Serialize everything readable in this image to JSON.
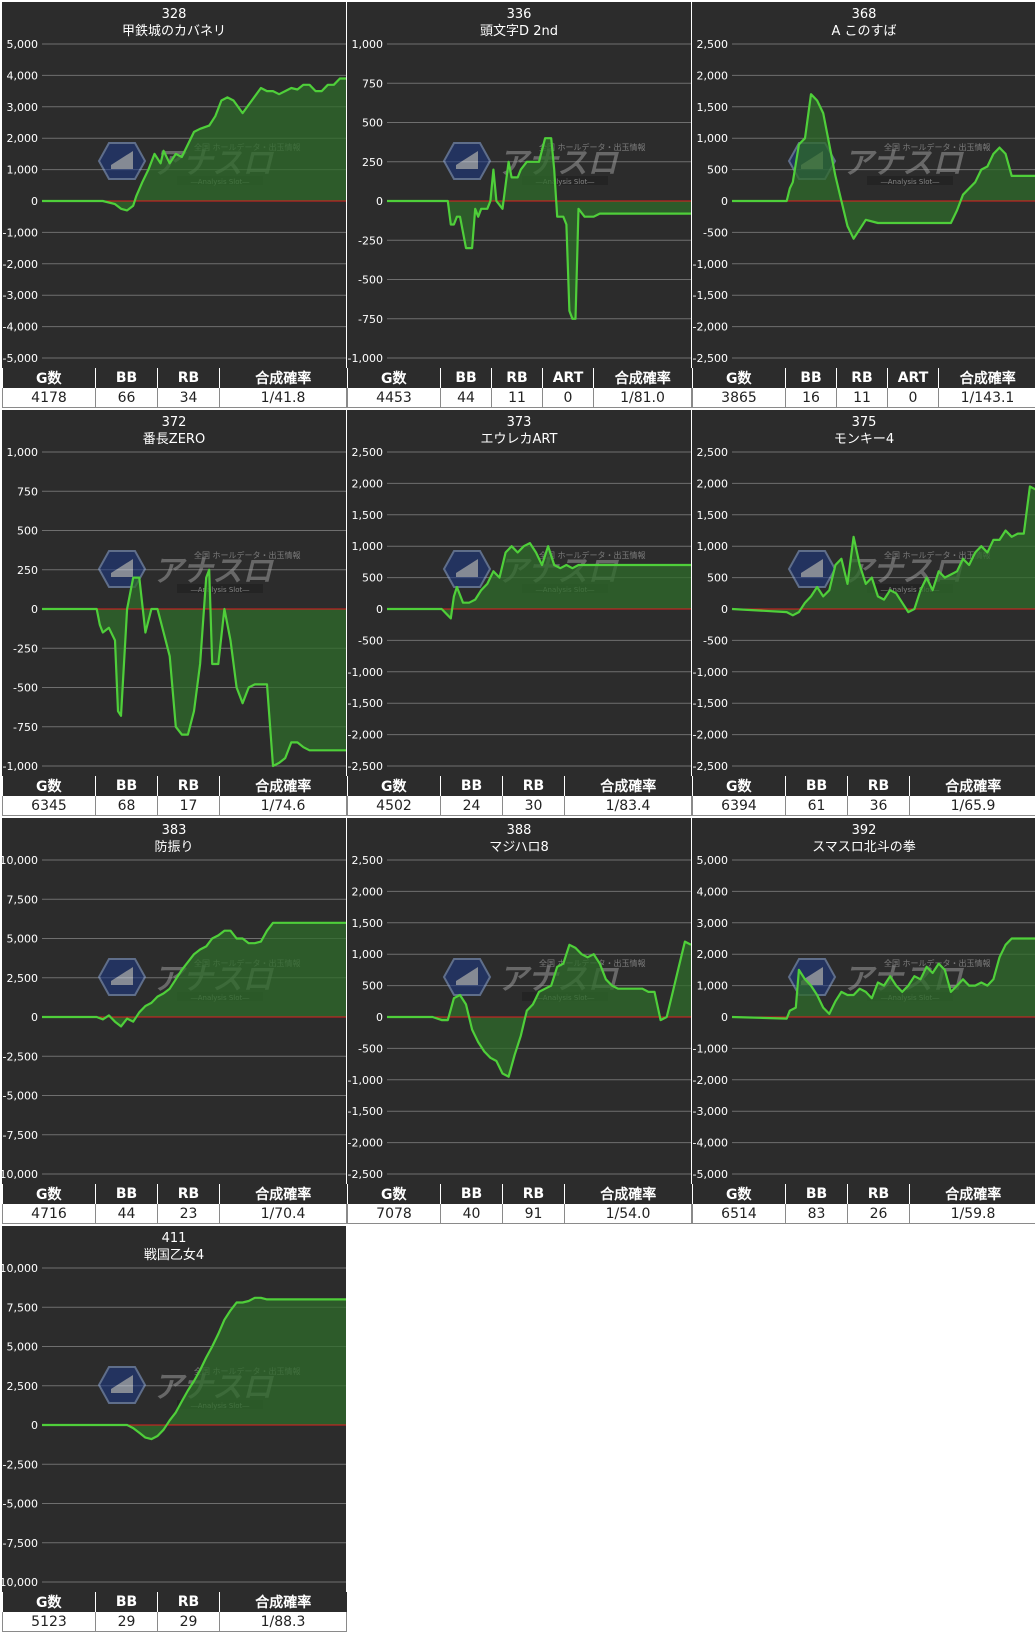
{
  "colors": {
    "background": "#2c2c2c",
    "gridline": "#6f6f6f",
    "zero_line": "#e02020",
    "series_line": "#4fcf3a",
    "series_fill": "#2e6b2a",
    "text": "#ffffff"
  },
  "watermark": {
    "title": "アナスロ",
    "subtitle": "―Analysis Slot―",
    "tagline": "全国 ホールデータ・出玉情報"
  },
  "machines": [
    {
      "number": "328",
      "name": "甲鉄城のカバネリ",
      "stats": {
        "headers": [
          "G数",
          "BB",
          "RB",
          "合成確率"
        ],
        "values": [
          "4178",
          "66",
          "34",
          "1/41.8"
        ]
      },
      "chart_data": {
        "type": "area",
        "ylim": [
          -5000,
          5000
        ],
        "yticks": [
          "5,000",
          "4,000",
          "3,000",
          "2,000",
          "1,000",
          "0",
          "-1,000",
          "-2,000",
          "-3,000",
          "-4,000",
          "-5,000"
        ],
        "x": [
          0,
          20,
          24,
          26,
          28,
          30,
          31,
          33,
          35,
          37,
          39,
          40,
          42,
          44,
          46,
          48,
          50,
          52,
          55,
          57,
          59,
          61,
          63,
          66,
          69,
          72,
          74,
          76,
          78,
          80,
          82,
          84,
          86,
          88,
          90,
          92,
          94,
          96,
          98,
          100
        ],
        "y": [
          0,
          0,
          -100,
          -250,
          -300,
          -150,
          150,
          600,
          1000,
          1500,
          1200,
          1600,
          1200,
          1500,
          1400,
          1800,
          2200,
          2300,
          2400,
          2700,
          3200,
          3300,
          3200,
          2800,
          3200,
          3600,
          3500,
          3500,
          3400,
          3500,
          3600,
          3550,
          3700,
          3700,
          3500,
          3500,
          3700,
          3700,
          3900,
          3900
        ]
      }
    },
    {
      "number": "336",
      "name": "頭文字D 2nd",
      "stats": {
        "headers": [
          "G数",
          "BB",
          "RB",
          "ART",
          "合成確率"
        ],
        "values": [
          "4453",
          "44",
          "11",
          "0",
          "1/81.0"
        ]
      },
      "chart_data": {
        "type": "area",
        "ylim": [
          -1000,
          1000
        ],
        "yticks": [
          "1,000",
          "750",
          "500",
          "250",
          "0",
          "-250",
          "-500",
          "-750",
          "-1,000"
        ],
        "x": [
          0,
          20,
          21,
          22,
          23,
          24,
          26,
          28,
          29,
          30,
          31,
          33,
          34,
          35,
          36,
          38,
          40,
          41,
          43,
          44,
          46,
          48,
          50,
          52,
          54,
          55,
          56,
          58,
          59,
          60,
          61,
          62,
          63,
          65,
          68,
          70,
          100
        ],
        "y": [
          0,
          0,
          -150,
          -150,
          -100,
          -100,
          -300,
          -300,
          -50,
          -100,
          -50,
          -50,
          0,
          200,
          0,
          -50,
          250,
          150,
          150,
          200,
          250,
          250,
          250,
          400,
          400,
          200,
          -100,
          -100,
          -150,
          -700,
          -750,
          -750,
          -50,
          -100,
          -100,
          -80,
          -80
        ]
      }
    },
    {
      "number": "368",
      "name": "A このすば",
      "stats": {
        "headers": [
          "G数",
          "BB",
          "RB",
          "ART",
          "合成確率"
        ],
        "values": [
          "3865",
          "16",
          "11",
          "0",
          "1/143.1"
        ]
      },
      "chart_data": {
        "type": "area",
        "ylim": [
          -2500,
          2500
        ],
        "yticks": [
          "2,500",
          "2,000",
          "1,500",
          "1,000",
          "500",
          "0",
          "-500",
          "-1,000",
          "-1,500",
          "-2,000",
          "-2,500"
        ],
        "x": [
          0,
          18,
          19,
          20,
          22,
          24,
          26,
          28,
          30,
          32,
          34,
          36,
          38,
          40,
          42,
          44,
          48,
          60,
          72,
          74,
          76,
          78,
          80,
          82,
          84,
          86,
          88,
          90,
          92,
          95,
          100
        ],
        "y": [
          0,
          0,
          200,
          300,
          900,
          1000,
          1700,
          1600,
          1400,
          900,
          400,
          0,
          -400,
          -600,
          -450,
          -300,
          -350,
          -350,
          -350,
          -150,
          100,
          200,
          300,
          500,
          550,
          750,
          850,
          750,
          400,
          400,
          400
        ]
      }
    },
    {
      "number": "372",
      "name": "番長ZERO",
      "stats": {
        "headers": [
          "G数",
          "BB",
          "RB",
          "合成確率"
        ],
        "values": [
          "6345",
          "68",
          "17",
          "1/74.6"
        ]
      },
      "chart_data": {
        "type": "area",
        "ylim": [
          -1000,
          1000
        ],
        "yticks": [
          "1,000",
          "750",
          "500",
          "250",
          "0",
          "-250",
          "-500",
          "-750",
          "-1,000"
        ],
        "x": [
          0,
          18,
          19,
          20,
          22,
          24,
          25,
          26,
          28,
          30,
          32,
          34,
          36,
          38,
          40,
          42,
          44,
          46,
          48,
          50,
          52,
          54,
          55,
          56,
          58,
          60,
          62,
          64,
          66,
          68,
          70,
          74,
          76,
          78,
          80,
          82,
          84,
          86,
          88,
          100
        ],
        "y": [
          0,
          0,
          -100,
          -150,
          -120,
          -200,
          -650,
          -680,
          0,
          200,
          200,
          -150,
          0,
          0,
          -150,
          -300,
          -750,
          -800,
          -800,
          -650,
          -350,
          200,
          250,
          -350,
          -350,
          0,
          -200,
          -500,
          -600,
          -500,
          -480,
          -480,
          -1000,
          -980,
          -950,
          -850,
          -850,
          -880,
          -900,
          -900
        ]
      }
    },
    {
      "number": "373",
      "name": "エウレカART",
      "stats": {
        "headers": [
          "G数",
          "BB",
          "RB",
          "合成確率"
        ],
        "values": [
          "4502",
          "24",
          "30",
          "1/83.4"
        ]
      },
      "chart_data": {
        "type": "area",
        "ylim": [
          -2500,
          2500
        ],
        "yticks": [
          "2,500",
          "2,000",
          "1,500",
          "1,000",
          "500",
          "0",
          "-500",
          "-1,000",
          "-1,500",
          "-2,000",
          "-2,500"
        ],
        "x": [
          0,
          18,
          20,
          21,
          22,
          23,
          25,
          27,
          29,
          31,
          33,
          35,
          37,
          39,
          41,
          43,
          45,
          47,
          49,
          51,
          53,
          55,
          57,
          59,
          61,
          63,
          65,
          67,
          100
        ],
        "y": [
          0,
          0,
          -100,
          -150,
          200,
          350,
          100,
          100,
          150,
          300,
          400,
          600,
          500,
          900,
          1000,
          900,
          1000,
          1050,
          900,
          700,
          1000,
          700,
          650,
          700,
          650,
          700,
          700,
          700,
          700
        ]
      }
    },
    {
      "number": "375",
      "name": "モンキー4",
      "stats": {
        "headers": [
          "G数",
          "BB",
          "RB",
          "合成確率"
        ],
        "values": [
          "6394",
          "61",
          "36",
          "1/65.9"
        ]
      },
      "chart_data": {
        "type": "area",
        "ylim": [
          -2500,
          2500
        ],
        "yticks": [
          "2,500",
          "2,000",
          "1,500",
          "1,000",
          "500",
          "0",
          "-500",
          "-1,000",
          "-1,500",
          "-2,000",
          "-2,500"
        ],
        "x": [
          0,
          18,
          20,
          22,
          24,
          26,
          28,
          30,
          32,
          34,
          36,
          38,
          40,
          42,
          44,
          46,
          48,
          50,
          52,
          54,
          56,
          58,
          60,
          62,
          64,
          66,
          68,
          70,
          72,
          74,
          76,
          78,
          80,
          82,
          84,
          86,
          88,
          90,
          92,
          94,
          96,
          98,
          100
        ],
        "y": [
          0,
          -50,
          -100,
          -50,
          100,
          200,
          350,
          200,
          300,
          700,
          800,
          400,
          1150,
          700,
          400,
          500,
          200,
          150,
          300,
          250,
          100,
          -50,
          0,
          300,
          500,
          300,
          600,
          500,
          550,
          600,
          800,
          700,
          900,
          1000,
          900,
          1100,
          1100,
          1250,
          1150,
          1200,
          1200,
          1950,
          1900
        ]
      }
    },
    {
      "number": "383",
      "name": "防振り",
      "stats": {
        "headers": [
          "G数",
          "BB",
          "RB",
          "合成確率"
        ],
        "values": [
          "4716",
          "44",
          "23",
          "1/70.4"
        ]
      },
      "chart_data": {
        "type": "area",
        "ylim": [
          -10000,
          10000
        ],
        "yticks": [
          "10,000",
          "7,500",
          "5,000",
          "2,500",
          "0",
          "-2,500",
          "-5,000",
          "-7,500",
          "-10,000"
        ],
        "x": [
          0,
          18,
          20,
          22,
          24,
          26,
          28,
          30,
          32,
          34,
          36,
          38,
          40,
          42,
          44,
          46,
          48,
          50,
          52,
          54,
          56,
          58,
          60,
          62,
          64,
          66,
          68,
          70,
          72,
          74,
          76,
          78,
          100
        ],
        "y": [
          0,
          0,
          -150,
          100,
          -300,
          -600,
          -100,
          -300,
          300,
          700,
          900,
          1300,
          1500,
          1800,
          2400,
          3000,
          3500,
          4000,
          4300,
          4500,
          5000,
          5200,
          5500,
          5500,
          5000,
          5000,
          4700,
          4700,
          4800,
          5500,
          6000,
          6000,
          6000
        ]
      }
    },
    {
      "number": "388",
      "name": "マジハロ8",
      "stats": {
        "headers": [
          "G数",
          "BB",
          "RB",
          "合成確率"
        ],
        "values": [
          "7078",
          "40",
          "91",
          "1/54.0"
        ]
      },
      "chart_data": {
        "type": "area",
        "ylim": [
          -2500,
          2500
        ],
        "yticks": [
          "2,500",
          "2,000",
          "1,500",
          "1,000",
          "500",
          "0",
          "-500",
          "-1,000",
          "-1,500",
          "-2,000",
          "-2,500"
        ],
        "x": [
          0,
          15,
          18,
          20,
          22,
          24,
          26,
          28,
          30,
          32,
          34,
          36,
          38,
          40,
          42,
          44,
          46,
          48,
          50,
          52,
          54,
          56,
          58,
          60,
          62,
          64,
          66,
          68,
          70,
          72,
          74,
          76,
          78,
          80,
          82,
          84,
          86,
          88,
          90,
          92,
          94,
          96,
          98,
          100
        ],
        "y": [
          0,
          0,
          -50,
          -50,
          300,
          350,
          200,
          -200,
          -400,
          -550,
          -650,
          -700,
          -900,
          -950,
          -600,
          -300,
          100,
          200,
          400,
          450,
          500,
          800,
          850,
          1150,
          1100,
          1000,
          950,
          1000,
          850,
          600,
          500,
          450,
          450,
          450,
          450,
          450,
          400,
          400,
          -50,
          0,
          400,
          800,
          1200,
          1150
        ]
      }
    },
    {
      "number": "392",
      "name": "スマスロ北斗の拳",
      "stats": {
        "headers": [
          "G数",
          "BB",
          "RB",
          "合成確率"
        ],
        "values": [
          "6514",
          "83",
          "26",
          "1/59.8"
        ]
      },
      "chart_data": {
        "type": "area",
        "ylim": [
          -5000,
          5000
        ],
        "yticks": [
          "5,000",
          "4,000",
          "3,000",
          "2,000",
          "1,000",
          "0",
          "-1,000",
          "-2,000",
          "-3,000",
          "-4,000",
          "-5,000"
        ],
        "x": [
          0,
          18,
          19,
          21,
          22,
          24,
          26,
          28,
          30,
          32,
          34,
          36,
          38,
          40,
          42,
          44,
          46,
          48,
          50,
          52,
          54,
          56,
          58,
          60,
          62,
          64,
          66,
          68,
          70,
          72,
          74,
          76,
          78,
          80,
          82,
          84,
          86,
          88,
          90,
          92,
          94,
          100
        ],
        "y": [
          0,
          -50,
          200,
          300,
          1500,
          1200,
          1000,
          700,
          300,
          100,
          500,
          800,
          700,
          700,
          900,
          800,
          600,
          1100,
          1000,
          1300,
          1000,
          800,
          1000,
          1300,
          1200,
          1600,
          1400,
          1700,
          1500,
          800,
          1000,
          1200,
          1000,
          1000,
          1100,
          1000,
          1200,
          1900,
          2300,
          2500,
          2500,
          2500
        ]
      }
    },
    {
      "number": "411",
      "name": "戦国乙女4",
      "stats": {
        "headers": [
          "G数",
          "BB",
          "RB",
          "合成確率"
        ],
        "values": [
          "5123",
          "29",
          "29",
          "1/88.3"
        ]
      },
      "chart_data": {
        "type": "area",
        "ylim": [
          -10000,
          10000
        ],
        "yticks": [
          "10,000",
          "7,500",
          "5,000",
          "2,500",
          "0",
          "-2,500",
          "-5,000",
          "-7,500",
          "-10,000"
        ],
        "x": [
          0,
          28,
          30,
          32,
          34,
          36,
          38,
          40,
          42,
          44,
          46,
          48,
          50,
          52,
          54,
          56,
          58,
          60,
          62,
          64,
          66,
          68,
          70,
          72,
          74,
          76,
          78,
          100
        ],
        "y": [
          0,
          0,
          -200,
          -500,
          -800,
          -900,
          -700,
          -300,
          300,
          800,
          1500,
          2200,
          2800,
          3500,
          4300,
          5000,
          5800,
          6700,
          7300,
          7800,
          7800,
          7900,
          8100,
          8100,
          8000,
          8000,
          8000,
          8000
        ]
      }
    }
  ]
}
